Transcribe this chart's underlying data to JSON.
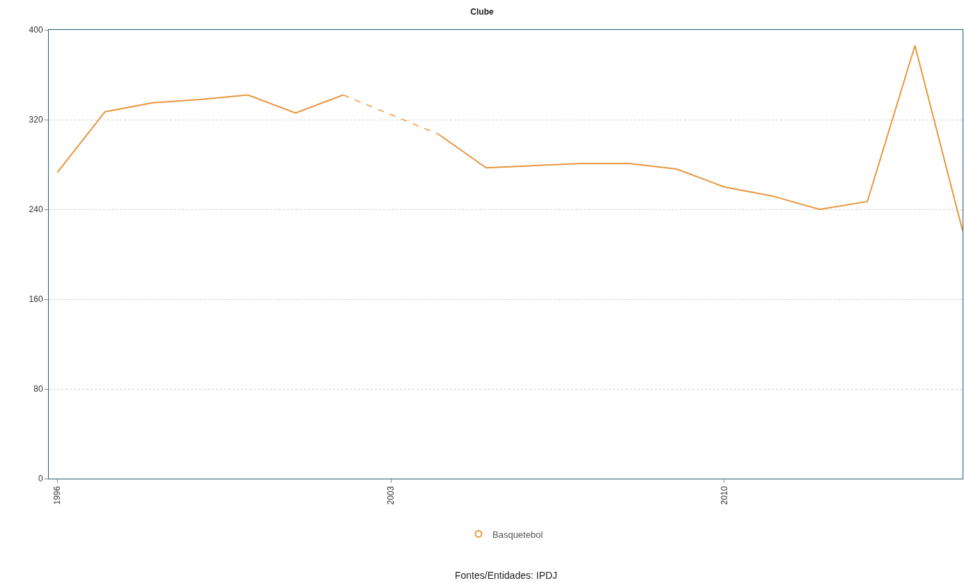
{
  "chart_data": {
    "type": "line",
    "title": "Clube",
    "x": [
      1996,
      1997,
      1998,
      1999,
      2000,
      2001,
      2002,
      2003,
      2004,
      2005,
      2006,
      2007,
      2008,
      2009,
      2010,
      2011,
      2012,
      2013,
      2014,
      2015
    ],
    "series": [
      {
        "name": "Basquetebol",
        "color": "#e8963c",
        "values": [
          273,
          327,
          335,
          338,
          342,
          326,
          342,
          null,
          307,
          277,
          279,
          281,
          281,
          276,
          260,
          252,
          240,
          247,
          386,
          221
        ]
      }
    ],
    "xlim": [
      1995.82,
      2015
    ],
    "xticks": [
      1996,
      2003,
      2010
    ],
    "ylim": [
      0,
      400
    ],
    "yticks": [
      0,
      80,
      160,
      240,
      320,
      400
    ],
    "grid": "y",
    "legend": "bottom",
    "marker": "none",
    "line_style": "solid",
    "annotations": [
      "Fontes/Entidades: IPDJ"
    ]
  }
}
